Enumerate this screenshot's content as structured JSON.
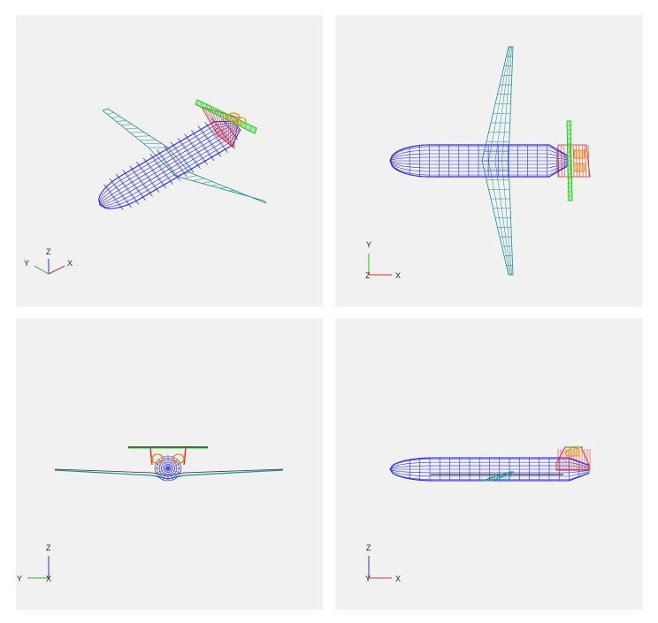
{
  "colors": {
    "background": "#f1f1f1",
    "fuselage": "#2d2ddb",
    "wing": "#1f8f8f",
    "vtail": "#e02020",
    "htail": "#22cc22",
    "engine": "#ff8800",
    "axis_x": "#e03030",
    "axis_y": "#22bb22",
    "axis_z": "#3030d0"
  },
  "viewports": {
    "isometric": {
      "axes": {
        "y": "Y",
        "z": "Z",
        "x": "X"
      }
    },
    "top": {
      "axes": {
        "y": "Y",
        "z": "Z",
        "x": "X"
      }
    },
    "front": {
      "axes": {
        "z": "Z",
        "y": "Y",
        "x": "X"
      }
    },
    "side": {
      "axes": {
        "z": "Z",
        "y": "Y",
        "x": "X"
      }
    }
  }
}
